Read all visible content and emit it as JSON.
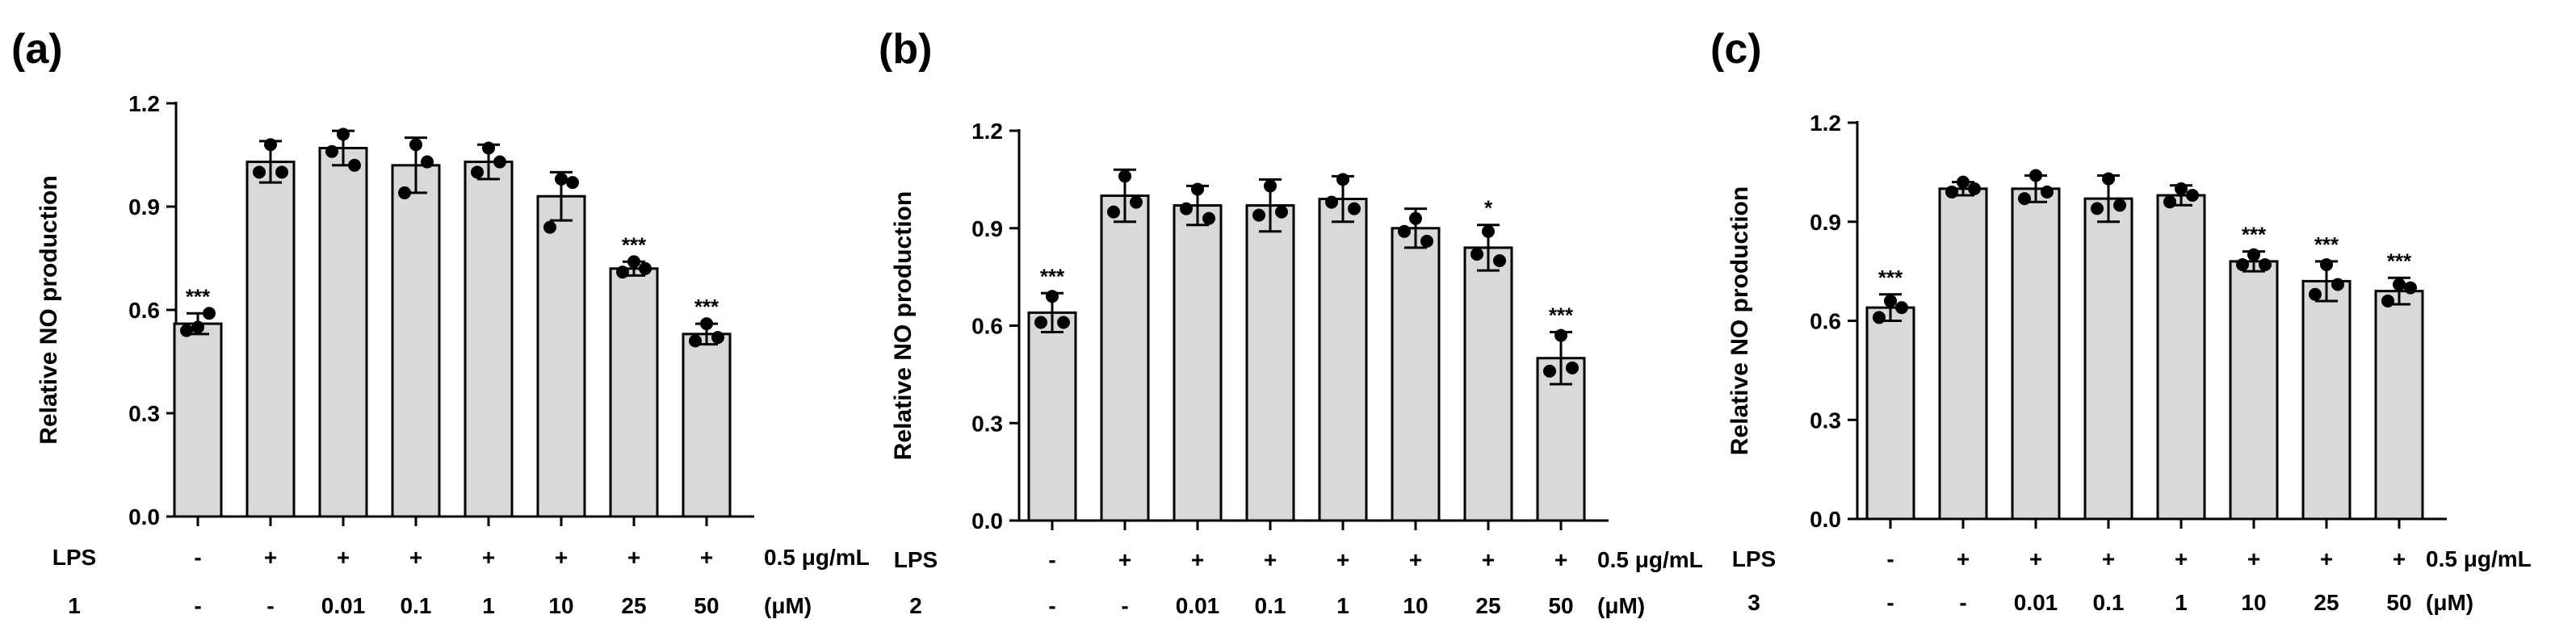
{
  "figure": {
    "panels": [
      "(a)",
      "(b)",
      "(c)"
    ]
  },
  "chart_data": [
    {
      "type": "bar",
      "panel_label": "(a)",
      "ylabel": "Relative NO production",
      "ylim": [
        0,
        1.2
      ],
      "yticks": [
        "0.0",
        "0.3",
        "0.6",
        "0.9",
        "1.2"
      ],
      "lps_row": {
        "label": "LPS",
        "values": [
          "-",
          "+",
          "+",
          "+",
          "+",
          "+",
          "+",
          "+"
        ],
        "unit": "0.5 μg/mL"
      },
      "compound_row": {
        "label": "1",
        "values": [
          "-",
          "-",
          "0.01",
          "0.1",
          "1",
          "10",
          "25",
          "50"
        ],
        "unit": "(μM)"
      },
      "values": [
        0.56,
        1.03,
        1.07,
        1.02,
        1.03,
        0.93,
        0.72,
        0.53
      ],
      "errors": [
        0.03,
        0.06,
        0.05,
        0.08,
        0.05,
        0.07,
        0.02,
        0.03
      ],
      "points": [
        [
          0.55,
          0.54,
          0.59
        ],
        [
          1.08,
          1.0,
          1.0
        ],
        [
          1.11,
          1.06,
          1.02
        ],
        [
          1.08,
          0.94,
          1.03
        ],
        [
          1.07,
          1.0,
          1.03
        ],
        [
          0.98,
          0.84,
          0.97
        ],
        [
          0.74,
          0.71,
          0.72
        ],
        [
          0.56,
          0.51,
          0.52
        ]
      ],
      "significance": [
        "***",
        "",
        "",
        "",
        "",
        "",
        "***",
        "***"
      ],
      "bar_color": "#d9d9d9"
    },
    {
      "type": "bar",
      "panel_label": "(b)",
      "ylabel": "Relative NO production",
      "ylim": [
        0,
        1.2
      ],
      "yticks": [
        "0.0",
        "0.3",
        "0.6",
        "0.9",
        "1.2"
      ],
      "lps_row": {
        "label": "LPS",
        "values": [
          "-",
          "+",
          "+",
          "+",
          "+",
          "+",
          "+",
          "+"
        ],
        "unit": "0.5 μg/mL"
      },
      "compound_row": {
        "label": "2",
        "values": [
          "-",
          "-",
          "0.01",
          "0.1",
          "1",
          "10",
          "25",
          "50"
        ],
        "unit": "(μM)"
      },
      "values": [
        0.64,
        1.0,
        0.97,
        0.97,
        0.99,
        0.9,
        0.84,
        0.5
      ],
      "errors": [
        0.06,
        0.08,
        0.06,
        0.08,
        0.07,
        0.06,
        0.07,
        0.08
      ],
      "points": [
        [
          0.69,
          0.61,
          0.61
        ],
        [
          1.06,
          0.95,
          0.98
        ],
        [
          1.02,
          0.96,
          0.93
        ],
        [
          1.03,
          0.94,
          0.95
        ],
        [
          1.05,
          0.98,
          0.96
        ],
        [
          0.93,
          0.89,
          0.86
        ],
        [
          0.89,
          0.82,
          0.8
        ],
        [
          0.57,
          0.46,
          0.47
        ]
      ],
      "significance": [
        "***",
        "",
        "",
        "",
        "",
        "",
        "*",
        "***"
      ],
      "bar_color": "#d9d9d9"
    },
    {
      "type": "bar",
      "panel_label": "(c)",
      "ylabel": "Relative NO production",
      "ylim": [
        0,
        1.2
      ],
      "yticks": [
        "0.0",
        "0.3",
        "0.6",
        "0.9",
        "1.2"
      ],
      "lps_row": {
        "label": "LPS",
        "values": [
          "-",
          "+",
          "+",
          "+",
          "+",
          "+",
          "+",
          "+"
        ],
        "unit": "0.5 μg/mL"
      },
      "compound_row": {
        "label": "3",
        "values": [
          "-",
          "-",
          "0.01",
          "0.1",
          "1",
          "10",
          "25",
          "50"
        ],
        "unit": "(μM)"
      },
      "values": [
        0.64,
        1.0,
        1.0,
        0.97,
        0.98,
        0.78,
        0.72,
        0.69
      ],
      "errors": [
        0.04,
        0.02,
        0.04,
        0.07,
        0.03,
        0.03,
        0.06,
        0.04
      ],
      "points": [
        [
          0.66,
          0.61,
          0.64
        ],
        [
          1.02,
          0.99,
          1.0
        ],
        [
          1.04,
          0.97,
          0.99
        ],
        [
          1.03,
          0.94,
          0.95
        ],
        [
          1.0,
          0.96,
          0.98
        ],
        [
          0.8,
          0.77,
          0.77
        ],
        [
          0.77,
          0.68,
          0.71
        ],
        [
          0.71,
          0.66,
          0.7
        ]
      ],
      "significance": [
        "***",
        "",
        "",
        "",
        "",
        "***",
        "***",
        "***"
      ],
      "bar_color": "#d9d9d9"
    }
  ]
}
